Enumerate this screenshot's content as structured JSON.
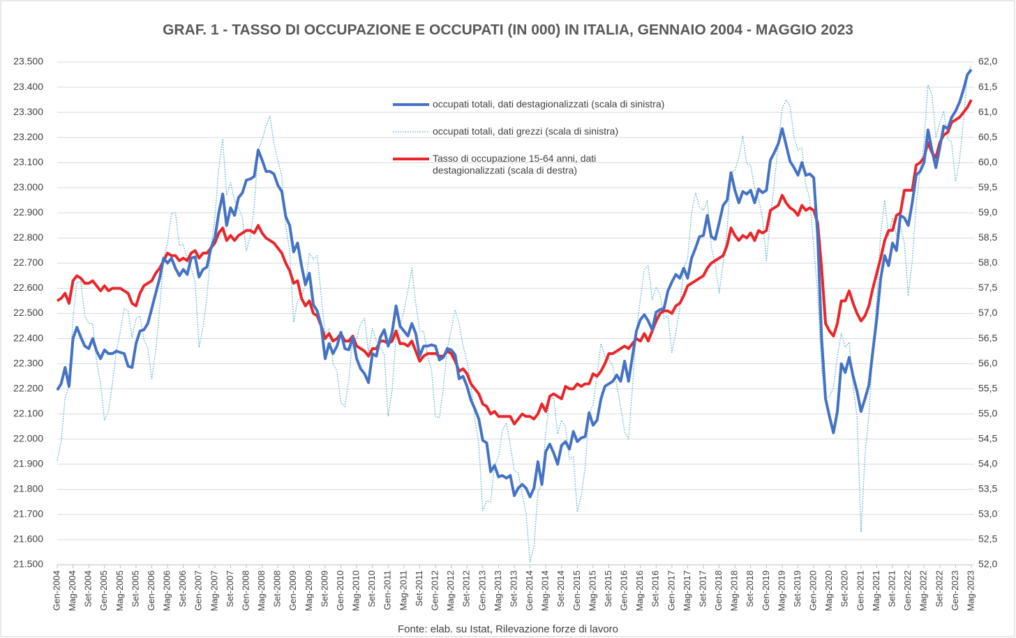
{
  "chart_data": {
    "type": "line",
    "title": "GRAF. 1 - TASSO DI OCCUPAZIONE E OCCUPATI (IN 000) IN ITALIA, GENNAIO 2004 - MAGGIO 2023",
    "source": "Fonte: elab. su Istat, Rilevazione forze di lavoro",
    "categories": [
      "Gen-2004",
      null,
      null,
      null,
      "Mag-2004",
      null,
      null,
      null,
      "Set-2004",
      null,
      null,
      null,
      "Gen-2005",
      null,
      null,
      null,
      "Mag-2005",
      null,
      null,
      null,
      "Set-2005",
      null,
      null,
      null,
      "Gen-2006",
      null,
      null,
      null,
      "Mag-2006",
      null,
      null,
      null,
      "Set-2006",
      null,
      null,
      null,
      "Gen-2007",
      null,
      null,
      null,
      "Mag-2007",
      null,
      null,
      null,
      "Set-2007",
      null,
      null,
      null,
      "Gen-2008",
      null,
      null,
      null,
      "Mag-2008",
      null,
      null,
      null,
      "Set-2008",
      null,
      null,
      null,
      "Gen-2009",
      null,
      null,
      null,
      "Mag-2009",
      null,
      null,
      null,
      "Set-2009",
      null,
      null,
      null,
      "Gen-2010",
      null,
      null,
      null,
      "Mag-2010",
      null,
      null,
      null,
      "Set-2010",
      null,
      null,
      null,
      "Gen-2011",
      null,
      null,
      null,
      "Mag-2011",
      null,
      null,
      null,
      "Set-2011",
      null,
      null,
      null,
      "Gen-2012",
      null,
      null,
      null,
      "Mag-2012",
      null,
      null,
      null,
      "Set-2012",
      null,
      null,
      null,
      "Gen-2013",
      null,
      null,
      null,
      "Mag-2013",
      null,
      null,
      null,
      "Set-2013",
      null,
      null,
      null,
      "Gen-2014",
      null,
      null,
      null,
      "Mag-2014",
      null,
      null,
      null,
      "Set-2014",
      null,
      null,
      null,
      "Gen-2015",
      null,
      null,
      null,
      "Mag-2015",
      null,
      null,
      null,
      "Set-2015",
      null,
      null,
      null,
      "Gen-2016",
      null,
      null,
      null,
      "Mag-2016",
      null,
      null,
      null,
      "Set-2016",
      null,
      null,
      null,
      "Gen-2017",
      null,
      null,
      null,
      "Mag-2017",
      null,
      null,
      null,
      "Set-2017",
      null,
      null,
      null,
      "Gen-2018",
      null,
      null,
      null,
      "Mag-2018",
      null,
      null,
      null,
      "Set-2018",
      null,
      null,
      null,
      "Gen-2019",
      null,
      null,
      null,
      "Mag-2019",
      null,
      null,
      null,
      "Set-2019",
      null,
      null,
      null,
      "Gen-2020",
      null,
      null,
      null,
      "Mag-2020",
      null,
      null,
      null,
      "Set-2020",
      null,
      null,
      null,
      "Gen-2021",
      null,
      null,
      null,
      "Mag-2021",
      null,
      null,
      null,
      "Set-2021",
      null,
      null,
      null,
      "Gen-2022",
      null,
      null,
      null,
      "Mag-2022",
      null,
      null,
      null,
      "Set-2022",
      null,
      null,
      null,
      "Gen-2023",
      null,
      null,
      null,
      "Mag-2023"
    ],
    "series": [
      {
        "name": "occupati totali, dati destagionalizzati (scala di sinistra)",
        "color": "#4472c4",
        "style": "solid",
        "axis": "y",
        "values": [
          22195,
          22220,
          22285,
          22210,
          22400,
          22445,
          22405,
          22370,
          22360,
          22400,
          22350,
          22320,
          22355,
          22340,
          22340,
          22350,
          22345,
          22340,
          22290,
          22285,
          22380,
          22430,
          22435,
          22460,
          22520,
          22580,
          22640,
          22720,
          22700,
          22720,
          22680,
          22650,
          22675,
          22655,
          22720,
          22725,
          22645,
          22675,
          22685,
          22760,
          22800,
          22900,
          22975,
          22850,
          22920,
          22890,
          22960,
          22980,
          23030,
          23035,
          23045,
          23150,
          23110,
          23065,
          23065,
          23055,
          23010,
          22985,
          22885,
          22850,
          22745,
          22780,
          22690,
          22615,
          22660,
          22535,
          22510,
          22450,
          22320,
          22380,
          22340,
          22370,
          22425,
          22360,
          22355,
          22405,
          22320,
          22280,
          22260,
          22225,
          22340,
          22330,
          22405,
          22435,
          22370,
          22425,
          22530,
          22450,
          22430,
          22410,
          22460,
          22420,
          22330,
          22370,
          22370,
          22375,
          22370,
          22315,
          22325,
          22360,
          22355,
          22335,
          22240,
          22250,
          22210,
          22155,
          22120,
          22080,
          21995,
          21985,
          21870,
          21895,
          21850,
          21855,
          21845,
          21855,
          21775,
          21805,
          21820,
          21805,
          21770,
          21805,
          21910,
          21820,
          21950,
          21980,
          21945,
          21900,
          21975,
          21990,
          21960,
          22030,
          21990,
          22005,
          22010,
          22105,
          22055,
          22075,
          22160,
          22210,
          22220,
          22230,
          22255,
          22230,
          22310,
          22230,
          22330,
          22430,
          22475,
          22495,
          22470,
          22435,
          22505,
          22515,
          22520,
          22590,
          22625,
          22655,
          22640,
          22680,
          22640,
          22720,
          22760,
          22805,
          22810,
          22890,
          22805,
          22795,
          22860,
          22930,
          22950,
          23060,
          22990,
          22940,
          22985,
          22975,
          22990,
          22940,
          22995,
          22980,
          22990,
          23110,
          23140,
          23175,
          23235,
          23170,
          23105,
          23080,
          23050,
          23100,
          23050,
          23055,
          23040,
          22810,
          22400,
          22160,
          22090,
          22025,
          22110,
          22300,
          22265,
          22325,
          22250,
          22190,
          22110,
          22160,
          22215,
          22350,
          22480,
          22640,
          22730,
          22690,
          22780,
          22750,
          22890,
          22880,
          22850,
          22940,
          23050,
          23065,
          23100,
          23230,
          23150,
          23080,
          23160,
          23245,
          23235,
          23280,
          23305,
          23340,
          23390,
          23450,
          23470
        ]
      },
      {
        "name": "occupati totali, dati grezzi (scala di sinistra)",
        "color": "#4bacc6",
        "style": "dotted",
        "axis": "y",
        "values": [
          21915,
          21990,
          22165,
          22210,
          22480,
          22625,
          22625,
          22490,
          22460,
          22460,
          22310,
          22220,
          22075,
          22110,
          22220,
          22350,
          22425,
          22520,
          22510,
          22405,
          22480,
          22490,
          22395,
          22360,
          22240,
          22350,
          22520,
          22720,
          22780,
          22900,
          22900,
          22770,
          22775,
          22715,
          22680,
          22625,
          22365,
          22445,
          22565,
          22760,
          22880,
          23080,
          23195,
          22970,
          23020,
          22950,
          22920,
          22880,
          22750,
          22805,
          22925,
          23150,
          23190,
          23245,
          23285,
          23175,
          23110,
          23045,
          22845,
          22750,
          22465,
          22550,
          22570,
          22615,
          22740,
          22715,
          22730,
          22570,
          22420,
          22440,
          22300,
          22270,
          22145,
          22130,
          22235,
          22405,
          22400,
          22460,
          22480,
          22345,
          22440,
          22390,
          22365,
          22335,
          22090,
          22195,
          22410,
          22450,
          22510,
          22590,
          22680,
          22540,
          22430,
          22430,
          22330,
          22275,
          22090,
          22085,
          22205,
          22360,
          22435,
          22515,
          22460,
          22370,
          22310,
          22215,
          22080,
          21980,
          21715,
          21755,
          21750,
          21895,
          21930,
          22035,
          22065,
          21975,
          21875,
          21865,
          21780,
          21705,
          21510,
          21575,
          21790,
          21820,
          22030,
          22160,
          22165,
          22020,
          22075,
          22050,
          21920,
          21930,
          21710,
          21775,
          21890,
          22105,
          22135,
          22255,
          22380,
          22330,
          22320,
          22290,
          22215,
          22130,
          22030,
          22000,
          22210,
          22430,
          22555,
          22675,
          22690,
          22555,
          22605,
          22575,
          22480,
          22490,
          22345,
          22425,
          22520,
          22680,
          22720,
          22900,
          22980,
          22925,
          22910,
          22950,
          22765,
          22695,
          22580,
          22700,
          22830,
          23060,
          23070,
          23120,
          23205,
          23095,
          23090,
          23000,
          22955,
          22880,
          22710,
          22880,
          23020,
          23175,
          23315,
          23350,
          23325,
          23200,
          23150,
          23160,
          23010,
          22955,
          22760,
          22580,
          22280,
          22160,
          22170,
          22205,
          22330,
          22420,
          22365,
          22385,
          22210,
          22090,
          21630,
          21930,
          22095,
          22350,
          22560,
          22820,
          22950,
          22810,
          22880,
          22810,
          22850,
          22780,
          22570,
          22710,
          22930,
          23065,
          23180,
          23410,
          23370,
          23200,
          23260,
          23305,
          23195,
          23180,
          23025,
          23110,
          23270,
          23450,
          23490
        ]
      },
      {
        "name": "Tasso di occupazione 15-64 anni, dati destagionalizzati (scala di destra)",
        "color": "#e8262a",
        "style": "solid",
        "axis": "y2",
        "values": [
          57.25,
          57.3,
          57.4,
          57.2,
          57.65,
          57.75,
          57.7,
          57.6,
          57.6,
          57.65,
          57.55,
          57.45,
          57.55,
          57.45,
          57.5,
          57.5,
          57.5,
          57.45,
          57.4,
          57.2,
          57.15,
          57.4,
          57.55,
          57.6,
          57.65,
          57.8,
          57.9,
          58.05,
          58.2,
          58.15,
          58.15,
          58.05,
          58.1,
          58.05,
          58.2,
          58.25,
          58.1,
          58.2,
          58.2,
          58.3,
          58.4,
          58.6,
          58.7,
          58.45,
          58.55,
          58.45,
          58.55,
          58.6,
          58.65,
          58.65,
          58.6,
          58.75,
          58.6,
          58.5,
          58.45,
          58.4,
          58.3,
          58.2,
          58.0,
          57.85,
          57.6,
          57.65,
          57.3,
          57.15,
          57.25,
          57.0,
          56.95,
          56.75,
          56.5,
          56.6,
          56.45,
          56.5,
          56.6,
          56.45,
          56.45,
          56.55,
          56.35,
          56.3,
          56.25,
          56.15,
          56.3,
          56.3,
          56.45,
          56.45,
          56.4,
          56.45,
          56.65,
          56.4,
          56.4,
          56.35,
          56.45,
          56.25,
          56.05,
          56.15,
          56.2,
          56.2,
          56.2,
          56.15,
          56.15,
          56.25,
          56.2,
          56.05,
          55.85,
          55.9,
          55.8,
          55.6,
          55.5,
          55.4,
          55.2,
          55.15,
          55.0,
          55.05,
          54.95,
          54.95,
          54.95,
          54.95,
          54.8,
          54.9,
          55.0,
          54.95,
          54.95,
          54.9,
          55.0,
          55.2,
          55.05,
          55.35,
          55.4,
          55.35,
          55.3,
          55.55,
          55.5,
          55.5,
          55.6,
          55.55,
          55.6,
          55.6,
          55.8,
          55.75,
          55.85,
          56.0,
          56.2,
          56.2,
          56.25,
          56.3,
          56.35,
          56.3,
          56.4,
          56.5,
          56.45,
          56.6,
          56.45,
          56.65,
          56.85,
          57.0,
          57.05,
          57.05,
          57.0,
          57.15,
          57.2,
          57.35,
          57.55,
          57.6,
          57.65,
          57.7,
          57.75,
          57.9,
          58.0,
          58.05,
          58.1,
          58.15,
          58.35,
          58.7,
          58.55,
          58.45,
          58.55,
          58.5,
          58.6,
          58.45,
          58.65,
          58.6,
          58.65,
          59.05,
          59.1,
          59.15,
          59.35,
          59.2,
          59.1,
          59.05,
          58.95,
          59.15,
          59.05,
          59.1,
          59.05,
          58.8,
          57.9,
          56.8,
          56.65,
          56.55,
          56.8,
          57.25,
          57.25,
          57.45,
          57.2,
          57.0,
          56.85,
          56.95,
          57.15,
          57.5,
          57.8,
          58.1,
          58.45,
          58.65,
          58.65,
          58.95,
          59.0,
          59.45,
          59.45,
          59.45,
          59.95,
          60.0,
          60.1,
          60.4,
          60.2,
          60.1,
          60.4,
          60.55,
          60.6,
          60.8,
          60.85,
          60.9,
          61.0,
          61.1,
          61.25
        ]
      }
    ],
    "ylim": [
      21500,
      23500
    ],
    "yticks": [
      {
        "value": 21500,
        "label": "21.500"
      },
      {
        "value": 21600,
        "label": "21.600"
      },
      {
        "value": 21700,
        "label": "21.700"
      },
      {
        "value": 21800,
        "label": "21.800"
      },
      {
        "value": 21900,
        "label": "21.900"
      },
      {
        "value": 22000,
        "label": "22.000"
      },
      {
        "value": 22100,
        "label": "22.100"
      },
      {
        "value": 22200,
        "label": "22.200"
      },
      {
        "value": 22300,
        "label": "22.300"
      },
      {
        "value": 22400,
        "label": "22.400"
      },
      {
        "value": 22500,
        "label": "22.500"
      },
      {
        "value": 22600,
        "label": "22.600"
      },
      {
        "value": 22700,
        "label": "22.700"
      },
      {
        "value": 22800,
        "label": "22.800"
      },
      {
        "value": 22900,
        "label": "22.900"
      },
      {
        "value": 23000,
        "label": "23.000"
      },
      {
        "value": 23100,
        "label": "23.100"
      },
      {
        "value": 23200,
        "label": "23.200"
      },
      {
        "value": 23300,
        "label": "23.300"
      },
      {
        "value": 23400,
        "label": "23.400"
      },
      {
        "value": 23500,
        "label": "23.500"
      }
    ],
    "y2lim": [
      52,
      62
    ],
    "y2ticks": [
      {
        "value": 52,
        "label": "52,0"
      },
      {
        "value": 52.5,
        "label": "52,5"
      },
      {
        "value": 53,
        "label": "53,0"
      },
      {
        "value": 53.5,
        "label": "53,5"
      },
      {
        "value": 54,
        "label": "54,0"
      },
      {
        "value": 54.5,
        "label": "54,5"
      },
      {
        "value": 55,
        "label": "55,0"
      },
      {
        "value": 55.5,
        "label": "55,5"
      },
      {
        "value": 56,
        "label": "56,0"
      },
      {
        "value": 56.5,
        "label": "56,5"
      },
      {
        "value": 57,
        "label": "57,0"
      },
      {
        "value": 57.5,
        "label": "57,5"
      },
      {
        "value": 58,
        "label": "58,0"
      },
      {
        "value": 58.5,
        "label": "58,5"
      },
      {
        "value": 59,
        "label": "59,0"
      },
      {
        "value": 59.5,
        "label": "59,5"
      },
      {
        "value": 60,
        "label": "60,0"
      },
      {
        "value": 60.5,
        "label": "60,5"
      },
      {
        "value": 61,
        "label": "61,0"
      },
      {
        "value": 61.5,
        "label": "61,5"
      },
      {
        "value": 62,
        "label": "62,0"
      }
    ],
    "grid": true
  }
}
